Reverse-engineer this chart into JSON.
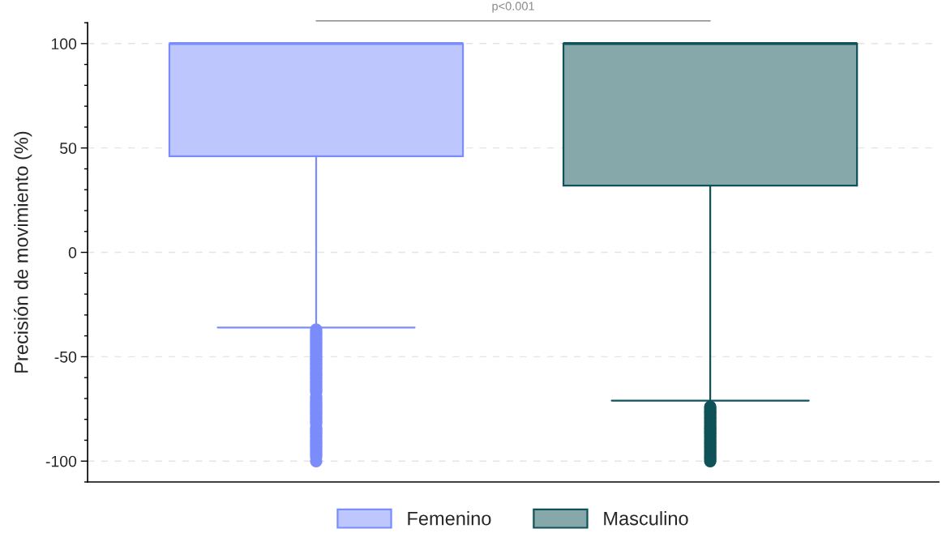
{
  "chart_data": {
    "type": "box",
    "ylabel": "Precisión de movimiento (%)",
    "annotations": [
      "p<0.001"
    ],
    "categories": [
      null,
      null
    ],
    "series": [
      {
        "name": "Femenino",
        "color": "#7b8cfb",
        "boxes": [
          {
            "low": -36,
            "q1": 46,
            "median": 100,
            "q3": 100,
            "high": 100,
            "outliers": [
              -37,
              -38,
              -39,
              -40,
              -41,
              -42,
              -43,
              -44,
              -45,
              -46,
              -47,
              -48,
              -49,
              -50,
              -51,
              -52,
              -53,
              -54,
              -55,
              -56,
              -57,
              -58,
              -59,
              -60,
              -61,
              -62,
              -63,
              -64,
              -65,
              -66,
              -67,
              -69,
              -70,
              -71,
              -72,
              -73,
              -74,
              -75,
              -76,
              -77,
              -78,
              -79,
              -80,
              -81,
              -82,
              -84,
              -85,
              -86,
              -87,
              -88,
              -89,
              -90,
              -91,
              -92,
              -93,
              -94,
              -95,
              -96,
              -97,
              -98,
              -100
            ]
          },
          null
        ]
      },
      {
        "name": "Masculino",
        "color": "#0f5257",
        "boxes": [
          null,
          {
            "low": -71,
            "q1": 32,
            "median": 100,
            "q3": 100,
            "high": 100,
            "outliers": [
              -74,
              -75,
              -76,
              -77,
              -78,
              -79,
              -80,
              -81,
              -82,
              -83,
              -84,
              -85,
              -86,
              -87,
              -88,
              -89,
              -90,
              -91,
              -92,
              -93,
              -94,
              -95,
              -96,
              -97,
              -98,
              -99,
              -100
            ]
          }
        ]
      }
    ],
    "ylim": [
      -110,
      110
    ],
    "yticks": [
      -100,
      -50,
      0,
      50,
      100
    ],
    "grid": "y",
    "legend": "bottom",
    "tick_labels": "y"
  }
}
